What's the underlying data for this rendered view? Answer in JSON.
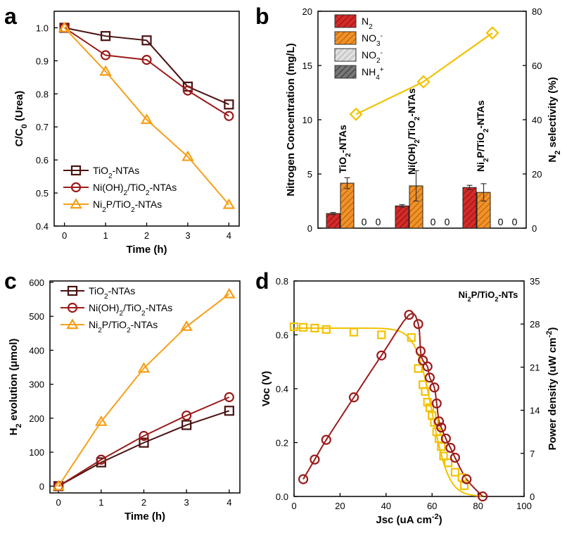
{
  "chart_data": [
    {
      "panel": "a",
      "type": "line",
      "xlabel": "Time (h)",
      "ylabel": "C/C0 (Urea)",
      "xlim": [
        -0.25,
        4.25
      ],
      "ylim": [
        0.4,
        1.05
      ],
      "xticks": [
        0,
        1,
        2,
        3,
        4
      ],
      "yticks": [
        0.4,
        0.5,
        0.6,
        0.7,
        0.8,
        0.9,
        1.0
      ],
      "x": [
        0,
        1,
        2,
        3,
        4
      ],
      "legend_position": "bottom-left",
      "series": [
        {
          "name": "TiO2-NTAs",
          "color": "#4a1212",
          "marker": "square",
          "values": [
            1.0,
            0.975,
            0.962,
            0.822,
            0.768
          ]
        },
        {
          "name": "Ni(OH)2/TiO2-NTAs",
          "color": "#9b1c1c",
          "marker": "circle",
          "values": [
            1.0,
            0.917,
            0.903,
            0.81,
            0.733
          ]
        },
        {
          "name": "Ni2P/TiO2-NTAs",
          "color": "#f5a01a",
          "marker": "triangle",
          "values": [
            1.0,
            0.868,
            0.722,
            0.61,
            0.465
          ]
        }
      ]
    },
    {
      "panel": "b",
      "type": "bar",
      "ylabel": "Nitrogen Concentration (mg/L)",
      "y2label": "N2 selectivity (%)",
      "ylim": [
        0,
        20
      ],
      "y2lim": [
        0,
        80
      ],
      "yticks": [
        0,
        5,
        10,
        15,
        20
      ],
      "y2ticks": [
        0,
        20,
        40,
        60,
        80
      ],
      "categories": [
        "TiO2-NTAs",
        "Ni(OH)2/TiO2-NTAs",
        "Ni2P/TiO2-NTAs"
      ],
      "series": [
        {
          "name": "N2",
          "color": "#d42a2a",
          "values": [
            1.35,
            2.05,
            3.75
          ],
          "errors": [
            0.1,
            0.12,
            0.2
          ]
        },
        {
          "name": "NO3-",
          "color": "#f0922a",
          "values": [
            4.15,
            3.9,
            3.3
          ],
          "errors": [
            0.5,
            1.4,
            0.8
          ]
        },
        {
          "name": "NO2-",
          "color": "#cfcfcf",
          "values": [
            0,
            0,
            0
          ],
          "labels": [
            "0",
            "0",
            "0"
          ]
        },
        {
          "name": "NH4+",
          "color": "#777777",
          "values": [
            0,
            0,
            0
          ],
          "labels": [
            "0",
            "0",
            "0"
          ]
        }
      ],
      "selectivity": {
        "name": "N2 selectivity",
        "color": "#f2c200",
        "values": [
          42,
          54,
          72
        ]
      }
    },
    {
      "panel": "c",
      "type": "line",
      "xlabel": "Time (h)",
      "ylabel": "H2 evolution (μmol)",
      "xlim": [
        -0.2,
        4.25
      ],
      "ylim": [
        -20,
        600
      ],
      "xticks": [
        0,
        1,
        2,
        3,
        4
      ],
      "yticks": [
        0,
        100,
        200,
        300,
        400,
        500,
        600
      ],
      "x": [
        0,
        1,
        2,
        3,
        4
      ],
      "legend_position": "top-left",
      "series": [
        {
          "name": "TiO2-NTAs",
          "color": "#4a1212",
          "marker": "square",
          "values": [
            0,
            70,
            128,
            180,
            222
          ]
        },
        {
          "name": "Ni(OH)2/TiO2-NTAs",
          "color": "#9b1c1c",
          "marker": "circle",
          "values": [
            0,
            78,
            148,
            208,
            262
          ]
        },
        {
          "name": "Ni2P/TiO2-NTAs",
          "color": "#f5a01a",
          "marker": "triangle",
          "values": [
            0,
            190,
            347,
            470,
            566
          ]
        }
      ]
    },
    {
      "panel": "d",
      "type": "scatter",
      "annotation": "Ni2P/TiO2-NTs",
      "xlabel": "Jsc (uA cm-2)",
      "ylabel": "Voc (V)",
      "y2label": "Power density (uW cm-2)",
      "xlim": [
        0,
        100
      ],
      "ylim": [
        0,
        0.8
      ],
      "y2lim": [
        0,
        35
      ],
      "xticks": [
        0,
        20,
        40,
        60,
        80,
        100
      ],
      "yticks": [
        0.0,
        0.2,
        0.4,
        0.6,
        0.8
      ],
      "y2ticks": [
        0,
        7,
        14,
        21,
        28,
        35
      ],
      "series": [
        {
          "name": "Voc",
          "axis": "left",
          "color": "#f2c200",
          "marker": "square",
          "x": [
            0,
            4,
            9,
            14,
            26,
            38,
            51,
            54,
            56,
            57,
            58,
            59,
            60,
            61,
            62,
            63,
            64,
            65,
            67,
            70,
            73,
            74
          ],
          "y": [
            0.63,
            0.628,
            0.625,
            0.62,
            0.61,
            0.6,
            0.59,
            0.475,
            0.415,
            0.39,
            0.35,
            0.33,
            0.3,
            0.275,
            0.24,
            0.215,
            0.185,
            0.15,
            0.125,
            0.09,
            0.07,
            0.04
          ]
        },
        {
          "name": "Power density",
          "axis": "right",
          "color": "#9b1c1c",
          "marker": "circle",
          "x": [
            4,
            9,
            14,
            26,
            38,
            50,
            54,
            55,
            56,
            58,
            59,
            61,
            62,
            63,
            64,
            66,
            68,
            70,
            75,
            82
          ],
          "y": [
            2.8,
            6.0,
            9.2,
            16.1,
            22.9,
            29.5,
            28.0,
            23.6,
            22.1,
            21.1,
            19.3,
            17.7,
            15.1,
            12.2,
            11.2,
            9.4,
            7.9,
            6.3,
            2.8,
            0
          ]
        }
      ]
    }
  ]
}
